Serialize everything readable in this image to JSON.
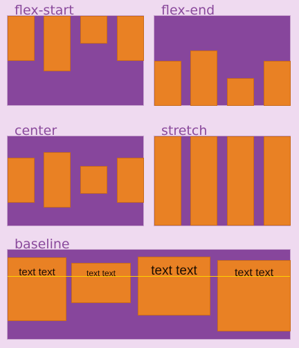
{
  "colors": {
    "page_background": "#efdaf0",
    "container": "#87469c",
    "item": "#e98124",
    "label": "#8a4a9c",
    "baseline_rule": "#ffd200"
  },
  "sections": {
    "flex_start": {
      "label": "flex-start"
    },
    "flex_end": {
      "label": "flex-end"
    },
    "center": {
      "label": "center"
    },
    "stretch": {
      "label": "stretch"
    },
    "baseline": {
      "label": "baseline",
      "items": [
        "text text",
        "text text",
        "text text",
        "text text"
      ]
    }
  }
}
